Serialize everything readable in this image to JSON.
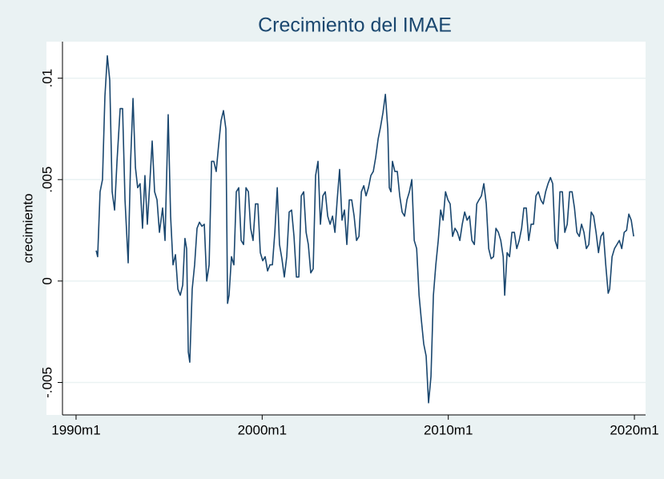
{
  "chart_data": {
    "type": "line",
    "title": "Crecimiento del IMAE",
    "y_label": "crecimiento",
    "color": "#1a476f",
    "grid": true,
    "xlim": [
      1989.27,
      2020.6
    ],
    "ylim": [
      -0.0066,
      0.0118
    ],
    "xticks": [
      {
        "value": 1990,
        "label": "1990m1"
      },
      {
        "value": 2000,
        "label": "2000m1"
      },
      {
        "value": 2010,
        "label": "2010m1"
      },
      {
        "value": 2020,
        "label": "2020m1"
      }
    ],
    "yticks": [
      {
        "value": -0.005,
        "label": "-.005"
      },
      0,
      {
        "value": 0.005,
        "label": ".005"
      },
      {
        "value": 0.01,
        "label": ".01"
      }
    ],
    "x": [
      1991.08,
      1991.16,
      1991.29,
      1991.42,
      1991.55,
      1991.68,
      1991.81,
      1991.94,
      1992.07,
      1992.2,
      1992.37,
      1992.5,
      1992.63,
      1992.8,
      1992.93,
      1993.06,
      1993.19,
      1993.31,
      1993.44,
      1993.57,
      1993.7,
      1993.83,
      1993.96,
      1994.09,
      1994.22,
      1994.35,
      1994.48,
      1994.65,
      1994.78,
      1994.95,
      1995.08,
      1995.21,
      1995.34,
      1995.47,
      1995.6,
      1995.73,
      1995.85,
      1995.94,
      1996.03,
      1996.11,
      1996.24,
      1996.37,
      1996.5,
      1996.63,
      1996.76,
      1996.89,
      1997.02,
      1997.15,
      1997.28,
      1997.4,
      1997.53,
      1997.66,
      1997.79,
      1997.92,
      1998.05,
      1998.14,
      1998.22,
      1998.35,
      1998.48,
      1998.61,
      1998.74,
      1998.87,
      1999.0,
      1999.13,
      1999.26,
      1999.38,
      1999.51,
      1999.64,
      1999.77,
      1999.9,
      2000.03,
      2000.16,
      2000.29,
      2000.42,
      2000.55,
      2000.68,
      2000.81,
      2000.93,
      2001.06,
      2001.19,
      2001.32,
      2001.45,
      2001.58,
      2001.71,
      2001.84,
      2001.97,
      2002.1,
      2002.23,
      2002.36,
      2002.48,
      2002.61,
      2002.74,
      2002.87,
      2003.0,
      2003.13,
      2003.26,
      2003.39,
      2003.52,
      2003.65,
      2003.78,
      2003.91,
      2004.03,
      2004.16,
      2004.29,
      2004.42,
      2004.55,
      2004.68,
      2004.81,
      2004.94,
      2005.07,
      2005.2,
      2005.33,
      2005.46,
      2005.58,
      2005.71,
      2005.84,
      2005.97,
      2006.1,
      2006.23,
      2006.36,
      2006.49,
      2006.62,
      2006.75,
      2006.83,
      2006.92,
      2007.0,
      2007.13,
      2007.26,
      2007.39,
      2007.52,
      2007.65,
      2007.78,
      2007.91,
      2008.04,
      2008.17,
      2008.3,
      2008.43,
      2008.55,
      2008.68,
      2008.81,
      2008.94,
      2009.07,
      2009.2,
      2009.33,
      2009.46,
      2009.59,
      2009.72,
      2009.85,
      2009.98,
      2010.1,
      2010.23,
      2010.36,
      2010.49,
      2010.62,
      2010.75,
      2010.88,
      2011.01,
      2011.14,
      2011.27,
      2011.4,
      2011.53,
      2011.65,
      2011.78,
      2011.91,
      2012.04,
      2012.17,
      2012.3,
      2012.43,
      2012.56,
      2012.69,
      2012.82,
      2012.95,
      2013.03,
      2013.16,
      2013.29,
      2013.42,
      2013.55,
      2013.68,
      2013.81,
      2013.94,
      2014.06,
      2014.19,
      2014.32,
      2014.45,
      2014.58,
      2014.71,
      2014.84,
      2014.97,
      2015.1,
      2015.23,
      2015.36,
      2015.49,
      2015.61,
      2015.74,
      2015.87,
      2016.0,
      2016.13,
      2016.26,
      2016.39,
      2016.52,
      2016.65,
      2016.78,
      2016.91,
      2017.04,
      2017.16,
      2017.29,
      2017.42,
      2017.55,
      2017.68,
      2017.81,
      2017.94,
      2018.07,
      2018.2,
      2018.33,
      2018.46,
      2018.59,
      2018.67,
      2018.8,
      2018.93,
      2019.06,
      2019.19,
      2019.32,
      2019.45,
      2019.58,
      2019.7,
      2019.83,
      2019.96
    ],
    "values": [
      0.0015,
      0.0012,
      0.0044,
      0.005,
      0.0091,
      0.0111,
      0.0099,
      0.0044,
      0.0035,
      0.0059,
      0.0085,
      0.0085,
      0.004,
      0.0009,
      0.0059,
      0.009,
      0.0056,
      0.0046,
      0.0048,
      0.0026,
      0.0052,
      0.0028,
      0.0048,
      0.0069,
      0.0044,
      0.004,
      0.0024,
      0.0036,
      0.002,
      0.0082,
      0.0032,
      0.0008,
      0.0013,
      -0.0004,
      -0.0007,
      -0.0002,
      0.0021,
      0.0016,
      -0.0035,
      -0.004,
      -0.0004,
      0.0008,
      0.0026,
      0.0029,
      0.0027,
      0.0028,
      0,
      0.0008,
      0.0059,
      0.0059,
      0.0054,
      0.0067,
      0.0079,
      0.0084,
      0.0075,
      -0.0011,
      -0.0007,
      0.0012,
      0.0008,
      0.0044,
      0.0046,
      0.002,
      0.0018,
      0.0046,
      0.0044,
      0.0026,
      0.002,
      0.0038,
      0.0038,
      0.0014,
      0.001,
      0.0012,
      0.0005,
      0.0008,
      0.0008,
      0.0024,
      0.0046,
      0.0018,
      0.0011,
      0.0002,
      0.0012,
      0.0034,
      0.0035,
      0.0022,
      0.0002,
      0.0002,
      0.0042,
      0.0044,
      0.0024,
      0.0018,
      0.0004,
      0.0006,
      0.0052,
      0.0059,
      0.0028,
      0.0042,
      0.0044,
      0.0032,
      0.0028,
      0.0032,
      0.0024,
      0.004,
      0.0055,
      0.003,
      0.0035,
      0.0018,
      0.004,
      0.004,
      0.0032,
      0.002,
      0.0022,
      0.0044,
      0.0047,
      0.0042,
      0.0046,
      0.0052,
      0.0054,
      0.0061,
      0.007,
      0.0076,
      0.0083,
      0.0092,
      0.0075,
      0.0046,
      0.0044,
      0.0059,
      0.0054,
      0.0054,
      0.0042,
      0.0034,
      0.0032,
      0.004,
      0.0044,
      0.005,
      0.002,
      0.0016,
      -0.0007,
      -0.0019,
      -0.0031,
      -0.0037,
      -0.006,
      -0.0047,
      -0.0007,
      0.0008,
      0.002,
      0.0035,
      0.003,
      0.0044,
      0.004,
      0.0038,
      0.0022,
      0.0026,
      0.0024,
      0.002,
      0.0028,
      0.0034,
      0.003,
      0.0032,
      0.002,
      0.0018,
      0.0038,
      0.004,
      0.0042,
      0.0048,
      0.0038,
      0.0016,
      0.0011,
      0.0012,
      0.0026,
      0.0024,
      0.002,
      0.0012,
      -0.0007,
      0.0014,
      0.0012,
      0.0024,
      0.0024,
      0.0016,
      0.002,
      0.0026,
      0.0036,
      0.0036,
      0.002,
      0.0028,
      0.0028,
      0.0042,
      0.0044,
      0.004,
      0.0038,
      0.0044,
      0.0048,
      0.0051,
      0.0048,
      0.002,
      0.0016,
      0.0044,
      0.0044,
      0.0024,
      0.0028,
      0.0044,
      0.0044,
      0.0036,
      0.0024,
      0.0022,
      0.0028,
      0.0024,
      0.0016,
      0.0018,
      0.0034,
      0.0032,
      0.0024,
      0.0014,
      0.0022,
      0.0024,
      0.0008,
      -0.0006,
      -0.0004,
      0.0012,
      0.0016,
      0.0018,
      0.002,
      0.0016,
      0.0024,
      0.0025,
      0.0033,
      0.003,
      0.0022
    ]
  }
}
